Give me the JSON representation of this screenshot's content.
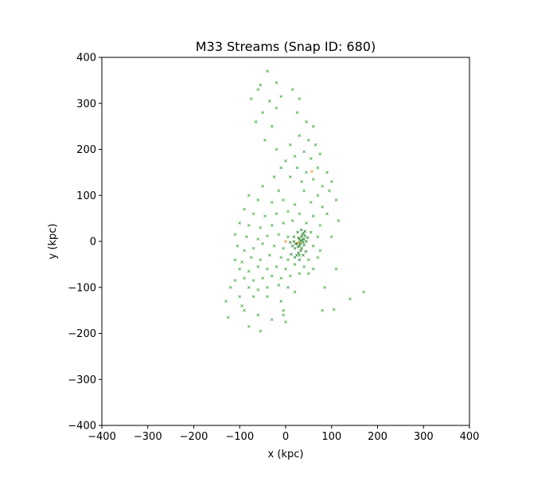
{
  "chart_data": {
    "type": "scatter",
    "title": "M33 Streams (Snap ID: 680)",
    "xlabel": "x (kpc)",
    "ylabel": "y (kpc)",
    "xlim": [
      -400,
      400
    ],
    "ylim": [
      -400,
      400
    ],
    "xticks": [
      -400,
      -300,
      -200,
      -100,
      0,
      100,
      200,
      300,
      400
    ],
    "yticks": [
      -400,
      -300,
      -200,
      -100,
      0,
      100,
      200,
      300,
      400
    ],
    "xtick_labels": [
      "−400",
      "−300",
      "−200",
      "−100",
      "0",
      "100",
      "200",
      "300",
      "400"
    ],
    "ytick_labels": [
      "−400",
      "−300",
      "−200",
      "−100",
      "0",
      "100",
      "200",
      "300",
      "400"
    ],
    "grid": false,
    "series": [
      {
        "color": "#2ca02c",
        "marker": "x",
        "points": [
          [
            -40,
            370
          ],
          [
            -20,
            345
          ],
          [
            -60,
            330
          ],
          [
            -55,
            340
          ],
          [
            -10,
            315
          ],
          [
            -35,
            305
          ],
          [
            -75,
            310
          ],
          [
            -50,
            280
          ],
          [
            -20,
            290
          ],
          [
            -65,
            260
          ],
          [
            -30,
            250
          ],
          [
            15,
            330
          ],
          [
            30,
            310
          ],
          [
            25,
            280
          ],
          [
            45,
            260
          ],
          [
            60,
            250
          ],
          [
            -45,
            220
          ],
          [
            -20,
            200
          ],
          [
            10,
            210
          ],
          [
            30,
            230
          ],
          [
            50,
            220
          ],
          [
            65,
            210
          ],
          [
            40,
            195
          ],
          [
            20,
            185
          ],
          [
            0,
            175
          ],
          [
            55,
            180
          ],
          [
            75,
            190
          ],
          [
            -10,
            160
          ],
          [
            25,
            160
          ],
          [
            45,
            150
          ],
          [
            70,
            160
          ],
          [
            90,
            150
          ],
          [
            60,
            135
          ],
          [
            35,
            130
          ],
          [
            10,
            140
          ],
          [
            -25,
            140
          ],
          [
            80,
            120
          ],
          [
            100,
            130
          ],
          [
            -50,
            120
          ],
          [
            -15,
            110
          ],
          [
            40,
            110
          ],
          [
            70,
            100
          ],
          [
            95,
            110
          ],
          [
            -80,
            100
          ],
          [
            -60,
            90
          ],
          [
            -30,
            85
          ],
          [
            -5,
            90
          ],
          [
            20,
            80
          ],
          [
            55,
            85
          ],
          [
            80,
            75
          ],
          [
            -90,
            70
          ],
          [
            -70,
            60
          ],
          [
            -45,
            55
          ],
          [
            -20,
            60
          ],
          [
            5,
            65
          ],
          [
            30,
            60
          ],
          [
            60,
            55
          ],
          [
            90,
            60
          ],
          [
            -100,
            40
          ],
          [
            -80,
            35
          ],
          [
            -55,
            30
          ],
          [
            -30,
            35
          ],
          [
            -5,
            40
          ],
          [
            15,
            45
          ],
          [
            45,
            40
          ],
          [
            75,
            35
          ],
          [
            -110,
            15
          ],
          [
            -85,
            10
          ],
          [
            -60,
            5
          ],
          [
            -40,
            12
          ],
          [
            -15,
            15
          ],
          [
            5,
            10
          ],
          [
            55,
            20
          ],
          [
            70,
            10
          ],
          [
            -105,
            -10
          ],
          [
            -90,
            -20
          ],
          [
            -70,
            -15
          ],
          [
            -50,
            -5
          ],
          [
            -25,
            -10
          ],
          [
            -5,
            -15
          ],
          [
            60,
            -10
          ],
          [
            75,
            -20
          ],
          [
            -110,
            -40
          ],
          [
            -95,
            -45
          ],
          [
            -75,
            -35
          ],
          [
            -55,
            -40
          ],
          [
            -35,
            -30
          ],
          [
            -10,
            -35
          ],
          [
            5,
            -40
          ],
          [
            30,
            -30
          ],
          [
            50,
            -40
          ],
          [
            70,
            -35
          ],
          [
            -100,
            -60
          ],
          [
            -80,
            -65
          ],
          [
            -60,
            -55
          ],
          [
            -40,
            -60
          ],
          [
            -20,
            -55
          ],
          [
            0,
            -60
          ],
          [
            20,
            -50
          ],
          [
            40,
            -55
          ],
          [
            60,
            -60
          ],
          [
            -90,
            -80
          ],
          [
            -70,
            -85
          ],
          [
            -50,
            -80
          ],
          [
            -30,
            -75
          ],
          [
            -10,
            -80
          ],
          [
            10,
            -75
          ],
          [
            30,
            -70
          ],
          [
            50,
            -70
          ],
          [
            -80,
            -100
          ],
          [
            -60,
            -105
          ],
          [
            -40,
            -100
          ],
          [
            -15,
            -95
          ],
          [
            5,
            -100
          ],
          [
            -120,
            -100
          ],
          [
            -100,
            -120
          ],
          [
            -70,
            -120
          ],
          [
            -40,
            -120
          ],
          [
            -10,
            -130
          ],
          [
            20,
            -110
          ],
          [
            -90,
            -150
          ],
          [
            -60,
            -160
          ],
          [
            -30,
            -170
          ],
          [
            -5,
            -150
          ],
          [
            -125,
            -165
          ],
          [
            -80,
            -185
          ],
          [
            -55,
            -195
          ],
          [
            -130,
            -130
          ],
          [
            -95,
            -140
          ],
          [
            -110,
            -85
          ],
          [
            110,
            -60
          ],
          [
            85,
            -100
          ],
          [
            80,
            -150
          ],
          [
            105,
            -148
          ],
          [
            140,
            -125
          ],
          [
            170,
            -110
          ],
          [
            110,
            90
          ],
          [
            115,
            45
          ],
          [
            100,
            10
          ],
          [
            -5,
            -160
          ],
          [
            0,
            -175
          ]
        ]
      },
      {
        "color": "#1a7a1a",
        "marker": "x",
        "points": [
          [
            30,
            5
          ],
          [
            35,
            10
          ],
          [
            40,
            5
          ],
          [
            38,
            -2
          ],
          [
            32,
            0
          ],
          [
            28,
            8
          ],
          [
            42,
            12
          ],
          [
            36,
            15
          ],
          [
            45,
            0
          ],
          [
            25,
            -5
          ],
          [
            30,
            -10
          ],
          [
            35,
            -15
          ],
          [
            20,
            -15
          ],
          [
            15,
            -10
          ],
          [
            22,
            -5
          ],
          [
            18,
            0
          ],
          [
            40,
            -8
          ],
          [
            33,
            -20
          ],
          [
            28,
            -25
          ],
          [
            24,
            -30
          ],
          [
            38,
            -30
          ],
          [
            30,
            -40
          ],
          [
            20,
            -35
          ],
          [
            12,
            -28
          ],
          [
            44,
            -22
          ],
          [
            42,
            22
          ],
          [
            34,
            25
          ],
          [
            26,
            20
          ],
          [
            18,
            10
          ],
          [
            10,
            -2
          ],
          [
            48,
            8
          ],
          [
            32,
            -5
          ],
          [
            36,
            3
          ],
          [
            27,
            -12
          ],
          [
            39,
            18
          ]
        ]
      },
      {
        "color": "#ff7f0e",
        "marker": "x",
        "points": [
          [
            0,
            0
          ],
          [
            28,
            -3
          ],
          [
            57,
            152
          ]
        ]
      }
    ]
  }
}
